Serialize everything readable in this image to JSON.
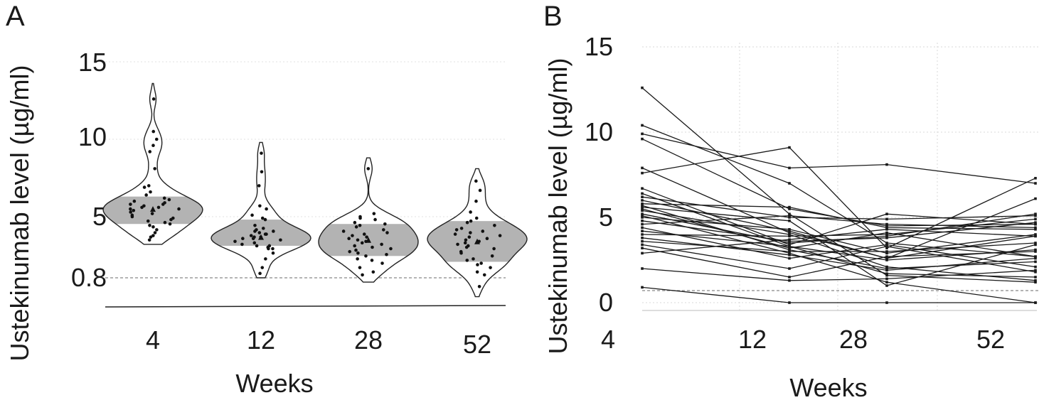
{
  "chart_data": [
    {
      "panel": "A",
      "type": "violin",
      "xlabel": "Weeks",
      "ylabel": "Ustekinumab level (µg/ml)",
      "categories": [
        "4",
        "12",
        "28",
        "52"
      ],
      "y_ticks": [
        "0.8",
        "5",
        "10",
        "15"
      ],
      "threshold": 0.8,
      "colors": {
        "iqr_box": "#b3b3b3",
        "points": "#111111",
        "outline": "#222222",
        "threshold_line": "#888888"
      },
      "groups": [
        {
          "label": "4",
          "median": 5.5,
          "q1": 4.5,
          "q3": 6.3,
          "min": 3.1,
          "max": 13.6,
          "points": [
            12.6,
            10.5,
            10.0,
            9.6,
            9.2,
            8.1,
            7.0,
            6.9,
            6.6,
            6.4,
            6.2,
            6.1,
            6.0,
            5.9,
            5.8,
            5.8,
            5.7,
            5.6,
            5.6,
            5.5,
            5.5,
            5.4,
            5.3,
            5.2,
            5.1,
            5.0,
            4.9,
            4.8,
            4.7,
            4.6,
            4.5,
            4.4,
            4.3,
            4.1,
            3.9,
            3.7,
            3.6,
            3.4
          ]
        },
        {
          "label": "12",
          "median": 3.6,
          "q1": 3.0,
          "q3": 4.8,
          "min": 0.8,
          "max": 9.8,
          "points": [
            9.1,
            7.9,
            7.0,
            5.7,
            5.5,
            5.1,
            4.9,
            4.8,
            4.4,
            4.2,
            4.1,
            4.0,
            4.0,
            3.9,
            3.8,
            3.8,
            3.7,
            3.6,
            3.6,
            3.5,
            3.5,
            3.4,
            3.3,
            3.2,
            3.1,
            3.0,
            3.0,
            2.9,
            2.8,
            2.8,
            2.5,
            2.1,
            1.5,
            1.1
          ]
        },
        {
          "label": "28",
          "median": 3.4,
          "q1": 2.3,
          "q3": 4.5,
          "min": 0.5,
          "max": 8.8,
          "points": [
            8.1,
            5.2,
            5.0,
            4.9,
            4.8,
            4.6,
            4.5,
            4.4,
            4.3,
            4.1,
            4.0,
            3.9,
            3.8,
            3.7,
            3.6,
            3.5,
            3.4,
            3.3,
            3.2,
            3.1,
            3.0,
            2.9,
            2.8,
            2.7,
            2.6,
            2.5,
            2.4,
            2.3,
            2.1,
            2.0,
            1.8,
            1.5,
            1.2,
            1.0
          ]
        },
        {
          "label": "52",
          "median": 3.3,
          "q1": 1.9,
          "q3": 4.7,
          "min": -0.5,
          "max": 8.1,
          "points": [
            7.3,
            6.7,
            6.0,
            5.3,
            4.9,
            4.7,
            4.6,
            4.4,
            4.2,
            4.1,
            4.0,
            3.9,
            3.8,
            3.7,
            3.6,
            3.5,
            3.4,
            3.3,
            3.2,
            3.1,
            3.0,
            2.9,
            2.8,
            2.6,
            2.5,
            2.3,
            2.1,
            2.0,
            1.8,
            1.7,
            1.5,
            1.2,
            1.0,
            0.2
          ]
        }
      ]
    },
    {
      "panel": "B",
      "type": "line",
      "xlabel": "Weeks",
      "ylabel": "Ustekinumab level (µg/ml)",
      "x": [
        "4",
        "12",
        "28",
        "52"
      ],
      "y_ticks": [
        "0",
        "5",
        "10",
        "15"
      ],
      "ylim": [
        0,
        15
      ],
      "threshold": 0.8,
      "grid": true,
      "colors": {
        "lines": "#1a1a1a",
        "grid": "#d9d9d9",
        "threshold_line": "#888888"
      },
      "series": [
        {
          "values": [
            12.6,
            5.2,
            1.6,
            1.2
          ]
        },
        {
          "values": [
            10.4,
            7.0,
            3.5,
            2.7
          ]
        },
        {
          "values": [
            9.9,
            7.9,
            8.1,
            7.0
          ]
        },
        {
          "values": [
            9.6,
            5.5,
            4.5,
            4.6
          ]
        },
        {
          "values": [
            7.9,
            4.1,
            2.6,
            3.9
          ]
        },
        {
          "values": [
            7.6,
            9.1,
            3.2,
            7.3
          ]
        },
        {
          "values": [
            6.7,
            3.4,
            5.2,
            4.6
          ]
        },
        {
          "values": [
            6.4,
            3.3,
            1.7,
            1.5
          ]
        },
        {
          "values": [
            6.2,
            5.0,
            4.9,
            5.1
          ]
        },
        {
          "values": [
            6.0,
            4.2,
            2.6,
            6.1
          ]
        },
        {
          "values": [
            5.8,
            5.6,
            4.4,
            4.3
          ]
        },
        {
          "values": [
            5.7,
            3.1,
            2.0,
            2.4
          ]
        },
        {
          "values": [
            5.6,
            4.8,
            1.0,
            3.4
          ]
        },
        {
          "values": [
            5.5,
            3.2,
            4.1,
            2.7
          ]
        },
        {
          "values": [
            5.4,
            4.0,
            2.1,
            1.3
          ]
        },
        {
          "values": [
            5.2,
            3.5,
            3.9,
            5.2
          ]
        },
        {
          "values": [
            5.1,
            2.9,
            1.2,
            0.0
          ]
        },
        {
          "values": [
            5.0,
            4.3,
            2.9,
            4.0
          ]
        },
        {
          "values": [
            4.8,
            3.6,
            3.8,
            4.7
          ]
        },
        {
          "values": [
            4.6,
            5.1,
            4.6,
            4.4
          ]
        },
        {
          "values": [
            4.4,
            2.6,
            3.4,
            2.1
          ]
        },
        {
          "values": [
            4.2,
            3.3,
            2.5,
            3.1
          ]
        },
        {
          "values": [
            4.0,
            3.9,
            4.0,
            4.9
          ]
        },
        {
          "values": [
            3.8,
            2.8,
            1.9,
            2.6
          ]
        },
        {
          "values": [
            3.6,
            3.0,
            3.0,
            3.5
          ]
        },
        {
          "values": [
            3.4,
            2.0,
            3.3,
            1.8
          ]
        },
        {
          "values": [
            3.2,
            1.5,
            2.7,
            3.0
          ]
        },
        {
          "values": [
            2.9,
            3.7,
            4.3,
            3.9
          ]
        },
        {
          "values": [
            2.0,
            1.3,
            1.4,
            1.9
          ]
        },
        {
          "values": [
            0.9,
            0.0,
            0.0,
            0.0
          ]
        }
      ]
    }
  ],
  "panels": {
    "A": {
      "label": "A"
    },
    "B": {
      "label": "B"
    }
  }
}
